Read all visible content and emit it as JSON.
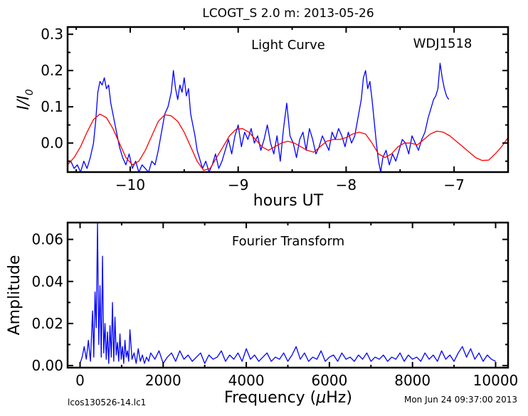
{
  "title": "LCOGT_S 2.0 m:  2013-05-26",
  "footer_left": "lcos130526-14.lc1",
  "footer_right": "Mon Jun 24 09:37:00 2013",
  "chart_data": [
    {
      "type": "line",
      "name": "light-curve",
      "annotation_title": "Light Curve",
      "annotation_object": "WDJ1518",
      "xlabel": "hours UT",
      "ylabel_main": "I/I",
      "ylabel_sub": "0",
      "xlim": [
        -10.58,
        -6.5
      ],
      "ylim": [
        -0.08,
        0.32
      ],
      "xticks": [
        -10,
        -9,
        -8,
        -7
      ],
      "xtick_labels": [
        "−10",
        "−9",
        "−8",
        "−7"
      ],
      "yticks": [
        0.0,
        0.1,
        0.2,
        0.3
      ],
      "ytick_labels": [
        "0.0",
        "0.1",
        "0.2",
        "0.3"
      ],
      "series": [
        {
          "color": "#0000ff",
          "x": [
            -10.55,
            -10.52,
            -10.49,
            -10.46,
            -10.43,
            -10.4,
            -10.37,
            -10.34,
            -10.32,
            -10.3,
            -10.28,
            -10.26,
            -10.24,
            -10.22,
            -10.2,
            -10.18,
            -10.16,
            -10.14,
            -10.12,
            -10.1,
            -10.07,
            -10.04,
            -10.01,
            -9.98,
            -9.95,
            -9.92,
            -9.89,
            -9.86,
            -9.83,
            -9.8,
            -9.77,
            -9.74,
            -9.71,
            -9.68,
            -9.65,
            -9.62,
            -9.6,
            -9.58,
            -9.56,
            -9.54,
            -9.52,
            -9.5,
            -9.48,
            -9.46,
            -9.44,
            -9.42,
            -9.4,
            -9.38,
            -9.36,
            -9.33,
            -9.3,
            -9.27,
            -9.24,
            -9.21,
            -9.18,
            -9.15,
            -9.12,
            -9.09,
            -9.06,
            -9.03,
            -9.0,
            -8.97,
            -8.94,
            -8.91,
            -8.88,
            -8.85,
            -8.82,
            -8.79,
            -8.76,
            -8.73,
            -8.7,
            -8.67,
            -8.64,
            -8.61,
            -8.58,
            -8.55,
            -8.52,
            -8.49,
            -8.46,
            -8.43,
            -8.4,
            -8.37,
            -8.34,
            -8.31,
            -8.28,
            -8.25,
            -8.22,
            -8.19,
            -8.16,
            -8.13,
            -8.1,
            -8.07,
            -8.04,
            -8.01,
            -7.98,
            -7.95,
            -7.92,
            -7.89,
            -7.86,
            -7.84,
            -7.82,
            -7.8,
            -7.78,
            -7.76,
            -7.74,
            -7.72,
            -7.7,
            -7.68,
            -7.66,
            -7.63,
            -7.6,
            -7.57,
            -7.54,
            -7.51,
            -7.48,
            -7.45,
            -7.42,
            -7.39,
            -7.36,
            -7.33,
            -7.3,
            -7.27,
            -7.24,
            -7.21,
            -7.19,
            -7.17,
            -7.15,
            -7.13,
            -7.11,
            -7.09,
            -7.07,
            -7.05
          ],
          "y": [
            -0.05,
            -0.07,
            -0.06,
            -0.08,
            -0.05,
            -0.07,
            -0.04,
            0.0,
            0.06,
            0.14,
            0.17,
            0.16,
            0.18,
            0.15,
            0.16,
            0.11,
            0.08,
            0.05,
            0.02,
            -0.01,
            -0.04,
            -0.06,
            -0.03,
            -0.07,
            -0.05,
            -0.08,
            -0.06,
            -0.07,
            -0.08,
            -0.05,
            -0.06,
            -0.02,
            0.03,
            0.08,
            0.1,
            0.14,
            0.2,
            0.15,
            0.12,
            0.16,
            0.14,
            0.18,
            0.13,
            0.15,
            0.08,
            0.05,
            0.02,
            -0.02,
            -0.04,
            -0.07,
            -0.05,
            -0.08,
            -0.06,
            -0.03,
            -0.07,
            -0.05,
            -0.02,
            0.01,
            -0.03,
            0.02,
            0.05,
            -0.01,
            0.03,
            0.01,
            0.04,
            0.0,
            0.02,
            -0.02,
            0.01,
            0.05,
            0.0,
            -0.03,
            0.02,
            -0.05,
            0.04,
            0.11,
            0.02,
            0.0,
            -0.04,
            0.01,
            0.03,
            -0.02,
            0.04,
            0.01,
            -0.03,
            -0.01,
            0.02,
            0.0,
            -0.02,
            0.03,
            0.01,
            0.04,
            0.02,
            -0.01,
            0.03,
            0.0,
            0.02,
            0.07,
            0.12,
            0.18,
            0.2,
            0.15,
            0.17,
            0.12,
            0.06,
            0.0,
            -0.05,
            -0.08,
            -0.04,
            -0.02,
            -0.06,
            -0.03,
            -0.05,
            -0.02,
            0.01,
            0.0,
            -0.03,
            0.02,
            0.0,
            -0.02,
            0.01,
            0.03,
            0.07,
            0.1,
            0.12,
            0.13,
            0.15,
            0.22,
            0.18,
            0.15,
            0.13,
            0.12
          ]
        },
        {
          "color": "#ff0000",
          "x": [
            -10.58,
            -10.52,
            -10.46,
            -10.4,
            -10.34,
            -10.28,
            -10.22,
            -10.16,
            -10.1,
            -10.04,
            -9.98,
            -9.92,
            -9.86,
            -9.8,
            -9.74,
            -9.68,
            -9.62,
            -9.56,
            -9.5,
            -9.44,
            -9.38,
            -9.32,
            -9.26,
            -9.2,
            -9.14,
            -9.08,
            -9.02,
            -8.96,
            -8.9,
            -8.84,
            -8.78,
            -8.72,
            -8.66,
            -8.6,
            -8.54,
            -8.48,
            -8.42,
            -8.36,
            -8.3,
            -8.24,
            -8.18,
            -8.12,
            -8.06,
            -8.0,
            -7.94,
            -7.88,
            -7.82,
            -7.76,
            -7.7,
            -7.64,
            -7.58,
            -7.52,
            -7.46,
            -7.4,
            -7.34,
            -7.28,
            -7.22,
            -7.16,
            -7.1,
            -7.04,
            -6.98,
            -6.92,
            -6.86,
            -6.8,
            -6.74,
            -6.68,
            -6.62,
            -6.56,
            -6.5
          ],
          "y": [
            -0.06,
            -0.04,
            -0.01,
            0.03,
            0.065,
            0.08,
            0.07,
            0.04,
            0.0,
            -0.04,
            -0.06,
            -0.05,
            -0.02,
            0.02,
            0.06,
            0.078,
            0.075,
            0.06,
            0.03,
            -0.01,
            -0.05,
            -0.075,
            -0.07,
            -0.04,
            -0.01,
            0.02,
            0.038,
            0.04,
            0.03,
            0.01,
            -0.01,
            -0.02,
            -0.01,
            0.0,
            0.005,
            0.0,
            -0.01,
            -0.02,
            -0.025,
            -0.01,
            0.005,
            0.01,
            0.01,
            0.015,
            0.025,
            0.03,
            0.025,
            0.0,
            -0.03,
            -0.04,
            -0.03,
            -0.01,
            0.0,
            0.0,
            -0.005,
            0.01,
            0.025,
            0.033,
            0.03,
            0.02,
            0.005,
            -0.01,
            -0.025,
            -0.04,
            -0.048,
            -0.047,
            -0.03,
            -0.01,
            0.015
          ]
        }
      ]
    },
    {
      "type": "line",
      "name": "fourier-transform",
      "annotation_title": "Fourier Transform",
      "xlabel_main": "Frequency (",
      "xlabel_mu": "μ",
      "xlabel_unit": "Hz)",
      "ylabel": "Amplitude",
      "xlim": [
        -300,
        10300
      ],
      "ylim": [
        -0.001,
        0.068
      ],
      "xticks": [
        0,
        2000,
        4000,
        6000,
        8000,
        10000
      ],
      "xtick_labels": [
        "0",
        "2000",
        "4000",
        "6000",
        "8000",
        "10000"
      ],
      "yticks": [
        0.0,
        0.02,
        0.04,
        0.06
      ],
      "ytick_labels": [
        "0.00",
        "0.02",
        "0.04",
        "0.06"
      ],
      "series": [
        {
          "color": "#0000ff",
          "x": [
            0,
            50,
            100,
            150,
            200,
            250,
            300,
            330,
            360,
            390,
            420,
            450,
            480,
            510,
            540,
            570,
            600,
            630,
            660,
            690,
            720,
            750,
            780,
            810,
            840,
            870,
            900,
            930,
            960,
            990,
            1020,
            1050,
            1080,
            1110,
            1140,
            1170,
            1200,
            1250,
            1300,
            1350,
            1400,
            1450,
            1500,
            1550,
            1600,
            1650,
            1700,
            1800,
            1900,
            2000,
            2100,
            2200,
            2300,
            2400,
            2500,
            2600,
            2700,
            2800,
            2900,
            3000,
            3100,
            3200,
            3300,
            3400,
            3500,
            3600,
            3700,
            3800,
            3900,
            4000,
            4100,
            4200,
            4300,
            4400,
            4500,
            4600,
            4700,
            4800,
            4900,
            5000,
            5100,
            5200,
            5300,
            5400,
            5500,
            5600,
            5700,
            5800,
            5900,
            6000,
            6100,
            6200,
            6300,
            6400,
            6500,
            6600,
            6700,
            6800,
            6900,
            7000,
            7100,
            7200,
            7300,
            7400,
            7500,
            7600,
            7700,
            7800,
            7900,
            8000,
            8100,
            8200,
            8300,
            8400,
            8500,
            8600,
            8700,
            8800,
            8900,
            9000,
            9100,
            9200,
            9300,
            9400,
            9500,
            9600,
            9700,
            9800,
            9900,
            10000
          ],
          "y": [
            0.001,
            0.004,
            0.009,
            0.003,
            0.012,
            0.002,
            0.026,
            0.004,
            0.035,
            0.018,
            0.068,
            0.01,
            0.038,
            0.004,
            0.052,
            0.006,
            0.02,
            0.003,
            0.016,
            0.001,
            0.019,
            0.004,
            0.03,
            0.002,
            0.023,
            0.005,
            0.011,
            0.002,
            0.015,
            0.003,
            0.009,
            0.001,
            0.012,
            0.004,
            0.007,
            0.002,
            0.017,
            0.003,
            0.006,
            0.001,
            0.008,
            0.002,
            0.005,
            0.001,
            0.004,
            0.002,
            0.006,
            0.003,
            0.007,
            0.001,
            0.004,
            0.006,
            0.002,
            0.007,
            0.003,
            0.005,
            0.002,
            0.004,
            0.006,
            0.001,
            0.005,
            0.003,
            0.004,
            0.007,
            0.002,
            0.005,
            0.003,
            0.006,
            0.002,
            0.008,
            0.003,
            0.005,
            0.002,
            0.004,
            0.006,
            0.002,
            0.004,
            0.003,
            0.006,
            0.002,
            0.005,
            0.009,
            0.003,
            0.006,
            0.002,
            0.004,
            0.003,
            0.007,
            0.002,
            0.004,
            0.005,
            0.002,
            0.006,
            0.003,
            0.004,
            0.002,
            0.005,
            0.003,
            0.006,
            0.002,
            0.004,
            0.003,
            0.005,
            0.002,
            0.004,
            0.003,
            0.006,
            0.002,
            0.005,
            0.003,
            0.004,
            0.002,
            0.006,
            0.003,
            0.005,
            0.002,
            0.007,
            0.003,
            0.005,
            0.002,
            0.006,
            0.009,
            0.004,
            0.008,
            0.003,
            0.006,
            0.002,
            0.005,
            0.003,
            0.002
          ]
        }
      ]
    }
  ]
}
